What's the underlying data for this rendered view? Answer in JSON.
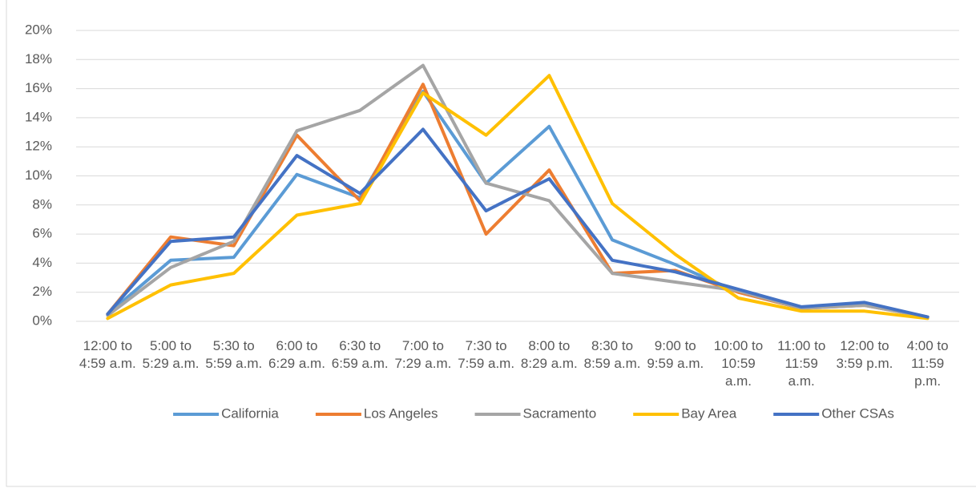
{
  "chart_data": {
    "type": "line",
    "categories": [
      "12:00 to 4:59 a.m.",
      "5:00 to 5:29 a.m.",
      "5:30 to 5:59 a.m.",
      "6:00 to 6:29 a.m.",
      "6:30 to 6:59 a.m.",
      "7:00 to 7:29 a.m.",
      "7:30 to 7:59 a.m.",
      "8:00 to 8:29 a.m.",
      "8:30 to 8:59 a.m.",
      "9:00 to 9:59 a.m.",
      "10:00 to 10:59 a.m.",
      "11:00 to 11:59 a.m.",
      "12:00 to 3:59 p.m.",
      "4:00 to 11:59 p.m."
    ],
    "series": [
      {
        "name": "California",
        "color": "#5b9bd5",
        "values": [
          0.5,
          4.2,
          4.4,
          10.1,
          8.5,
          15.8,
          9.5,
          13.4,
          5.6,
          3.9,
          2.0,
          0.9,
          1.2,
          0.3
        ]
      },
      {
        "name": "Los Angeles",
        "color": "#ed7d31",
        "values": [
          0.5,
          5.8,
          5.2,
          12.8,
          8.3,
          16.3,
          6.0,
          10.4,
          3.3,
          3.5,
          2.0,
          0.9,
          1.1,
          0.3
        ]
      },
      {
        "name": "Sacramento",
        "color": "#a5a5a5",
        "values": [
          0.4,
          3.7,
          5.5,
          13.1,
          14.5,
          17.6,
          9.5,
          8.3,
          3.3,
          2.7,
          2.1,
          0.9,
          1.1,
          0.3
        ]
      },
      {
        "name": "Bay Area",
        "color": "#ffc000",
        "values": [
          0.2,
          2.5,
          3.3,
          7.3,
          8.1,
          15.7,
          12.8,
          16.9,
          8.1,
          4.6,
          1.6,
          0.7,
          0.7,
          0.2
        ]
      },
      {
        "name": "Other CSAs",
        "color": "#4472c4",
        "values": [
          0.5,
          5.5,
          5.8,
          11.4,
          8.8,
          13.2,
          7.6,
          9.8,
          4.2,
          3.4,
          2.2,
          1.0,
          1.3,
          0.3
        ]
      }
    ],
    "ylim": [
      0,
      20
    ],
    "yticks": [
      {
        "value": 0,
        "label": "0%"
      },
      {
        "value": 2,
        "label": "2%"
      },
      {
        "value": 4,
        "label": "4%"
      },
      {
        "value": 6,
        "label": "6%"
      },
      {
        "value": 8,
        "label": "8%"
      },
      {
        "value": 10,
        "label": "10%"
      },
      {
        "value": 12,
        "label": "12%"
      },
      {
        "value": 14,
        "label": "14%"
      },
      {
        "value": 16,
        "label": "16%"
      },
      {
        "value": 18,
        "label": "18%"
      },
      {
        "value": 20,
        "label": "20%"
      }
    ],
    "grid": true,
    "legend": "bottom"
  }
}
